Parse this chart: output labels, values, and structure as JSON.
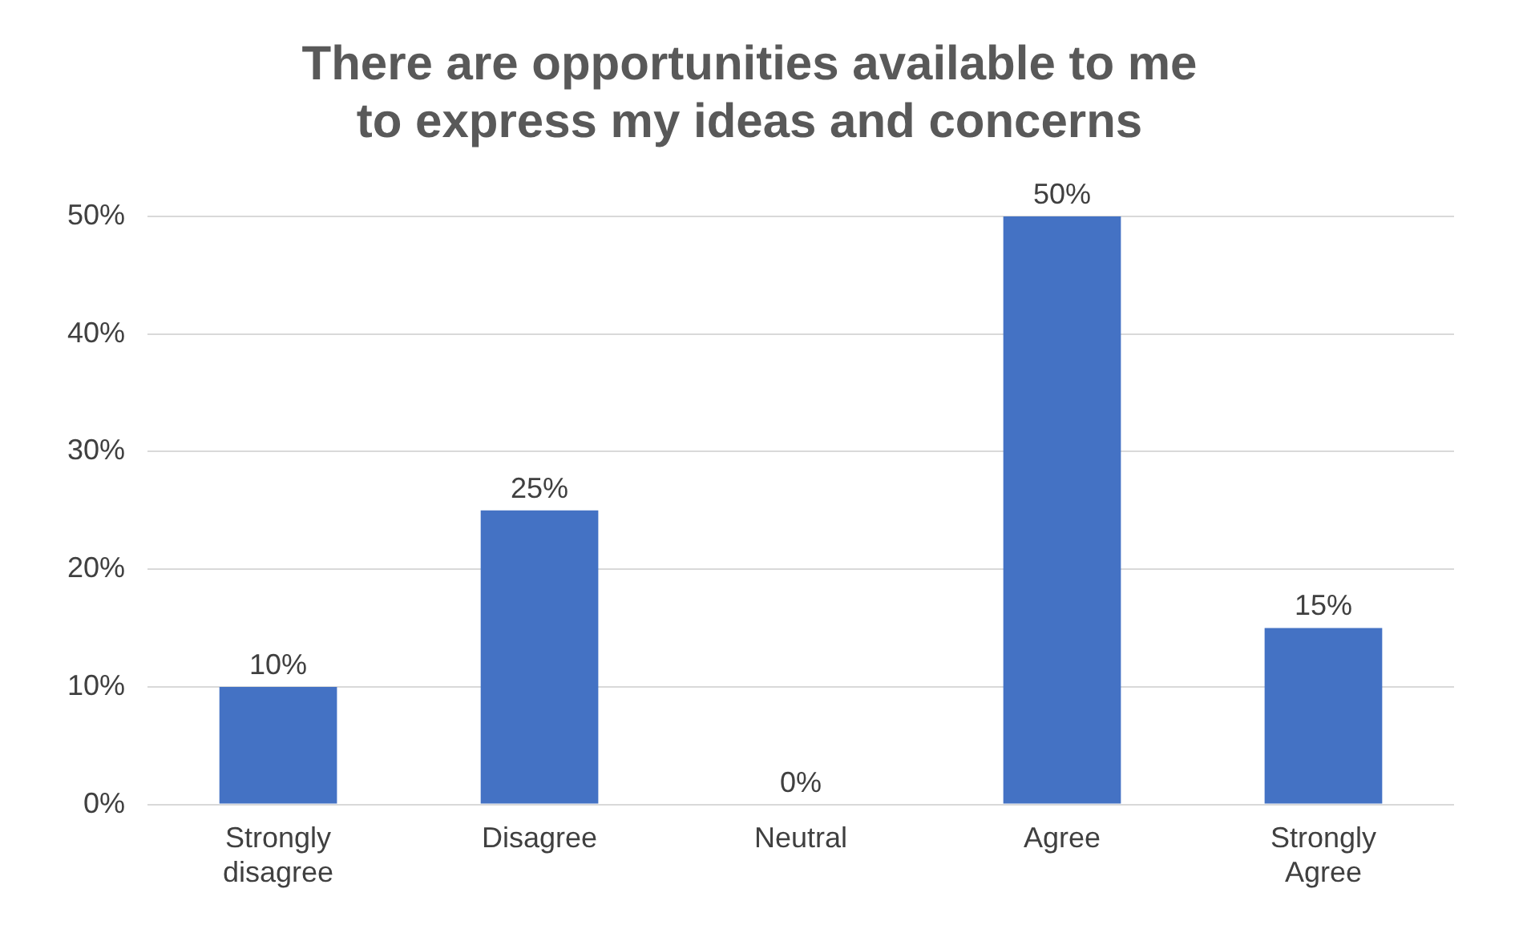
{
  "chart_data": {
    "type": "bar",
    "title": "There are opportunities available to me to express my ideas and concerns",
    "categories": [
      "Strongly disagree",
      "Disagree",
      "Neutral",
      "Agree",
      "Strongly Agree"
    ],
    "values": [
      10,
      25,
      0,
      50,
      15
    ],
    "value_labels": [
      "10%",
      "25%",
      "0%",
      "50%",
      "15%"
    ],
    "color": "#4472c4",
    "ylim": [
      0,
      50
    ],
    "yticks": [
      {
        "value": 0,
        "label": "0%"
      },
      {
        "value": 10,
        "label": "10%"
      },
      {
        "value": 20,
        "label": "20%"
      },
      {
        "value": 30,
        "label": "30%"
      },
      {
        "value": 40,
        "label": "40%"
      },
      {
        "value": 50,
        "label": "50%"
      }
    ],
    "grid": "y",
    "legend": false
  }
}
